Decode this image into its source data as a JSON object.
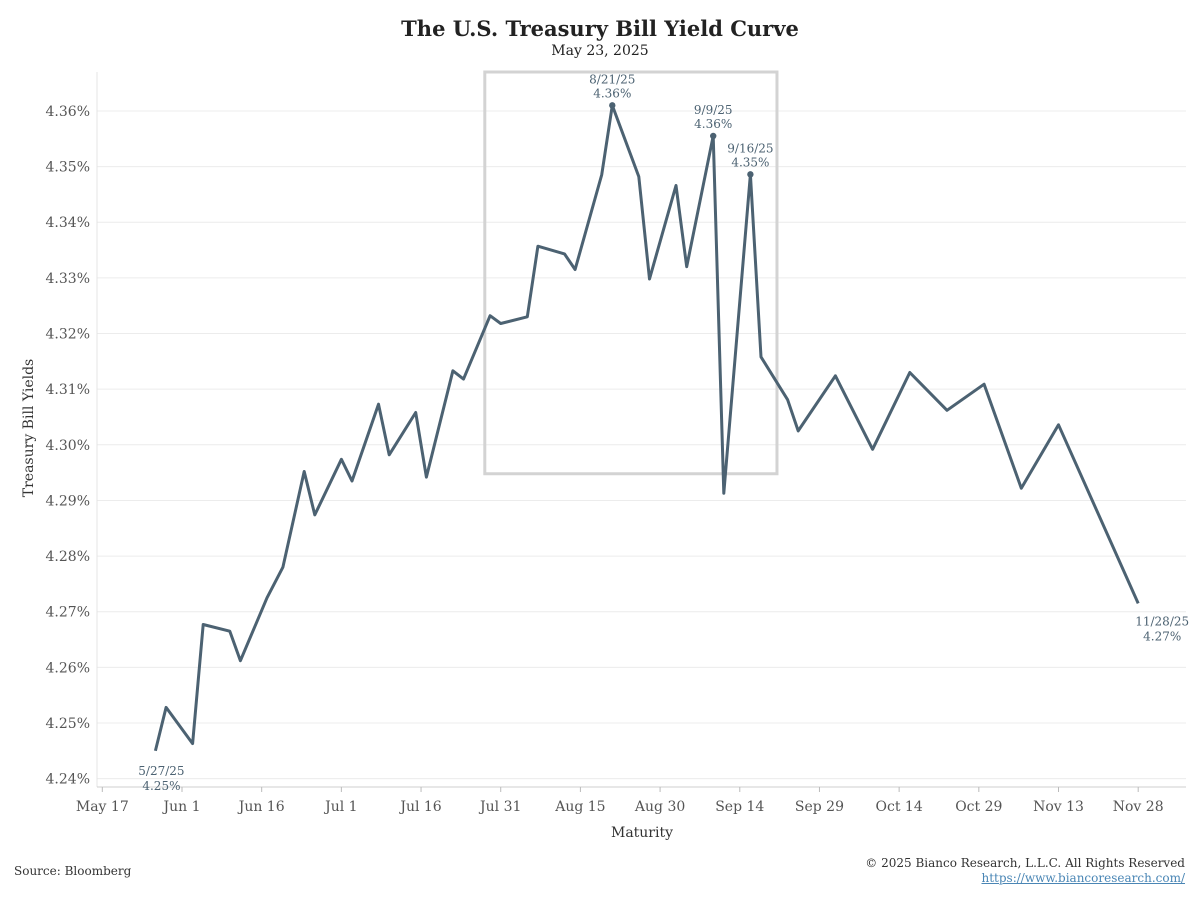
{
  "title": "The U.S. Treasury Bill Yield Curve",
  "subtitle": "May 23, 2025",
  "source": "Source: Bloomberg",
  "copyright": "© 2025 Bianco Research, L.L.C. All Rights Reserved",
  "url": "https://www.biancoresearch.com/",
  "chart_data": {
    "type": "line",
    "xlabel": "Maturity",
    "ylabel": "Treasury Bill Yields",
    "xlim": [
      "2025-05-16",
      "2025-12-07"
    ],
    "ylim": [
      4.2385,
      4.367
    ],
    "y_ticks": [
      4.24,
      4.25,
      4.26,
      4.27,
      4.28,
      4.29,
      4.3,
      4.31,
      4.32,
      4.33,
      4.34,
      4.35,
      4.36
    ],
    "y_tick_labels": [
      "4.24%",
      "4.25%",
      "4.26%",
      "4.27%",
      "4.28%",
      "4.29%",
      "4.30%",
      "4.31%",
      "4.32%",
      "4.33%",
      "4.34%",
      "4.35%",
      "4.36%"
    ],
    "x_ticks": [
      {
        "date": "2025-05-17",
        "label": "May 17"
      },
      {
        "date": "2025-06-01",
        "label": "Jun 1"
      },
      {
        "date": "2025-06-16",
        "label": "Jun 16"
      },
      {
        "date": "2025-07-01",
        "label": "Jul 1"
      },
      {
        "date": "2025-07-16",
        "label": "Jul 16"
      },
      {
        "date": "2025-07-31",
        "label": "Jul 31"
      },
      {
        "date": "2025-08-15",
        "label": "Aug 15"
      },
      {
        "date": "2025-08-30",
        "label": "Aug 30"
      },
      {
        "date": "2025-09-14",
        "label": "Sep 14"
      },
      {
        "date": "2025-09-29",
        "label": "Sep 29"
      },
      {
        "date": "2025-10-14",
        "label": "Oct 14"
      },
      {
        "date": "2025-10-29",
        "label": "Oct 29"
      },
      {
        "date": "2025-11-13",
        "label": "Nov 13"
      },
      {
        "date": "2025-11-28",
        "label": "Nov 28"
      }
    ],
    "grid": true,
    "series": [
      {
        "color": "#4c6272",
        "points": [
          [
            "2025-05-27",
            4.245
          ],
          [
            "2025-05-29",
            4.2528
          ],
          [
            "2025-06-03",
            4.2463
          ],
          [
            "2025-06-05",
            4.2677
          ],
          [
            "2025-06-10",
            4.2665
          ],
          [
            "2025-06-12",
            4.2612
          ],
          [
            "2025-06-17",
            4.2725
          ],
          [
            "2025-06-20",
            4.278
          ],
          [
            "2025-06-24",
            4.2952
          ],
          [
            "2025-06-26",
            4.2874
          ],
          [
            "2025-07-01",
            4.2974
          ],
          [
            "2025-07-03",
            4.2935
          ],
          [
            "2025-07-08",
            4.3073
          ],
          [
            "2025-07-10",
            4.2982
          ],
          [
            "2025-07-15",
            4.3058
          ],
          [
            "2025-07-17",
            4.2942
          ],
          [
            "2025-07-22",
            4.3133
          ],
          [
            "2025-07-24",
            4.3118
          ],
          [
            "2025-07-29",
            4.3232
          ],
          [
            "2025-07-31",
            4.3218
          ],
          [
            "2025-08-05",
            4.323
          ],
          [
            "2025-08-07",
            4.3357
          ],
          [
            "2025-08-12",
            4.3343
          ],
          [
            "2025-08-14",
            4.3315
          ],
          [
            "2025-08-19",
            4.3485
          ],
          [
            "2025-08-21",
            4.361
          ],
          [
            "2025-08-26",
            4.3482
          ],
          [
            "2025-08-28",
            4.3298
          ],
          [
            "2025-09-02",
            4.3466
          ],
          [
            "2025-09-04",
            4.332
          ],
          [
            "2025-09-09",
            4.3555
          ],
          [
            "2025-09-11",
            4.2913
          ],
          [
            "2025-09-16",
            4.3486
          ],
          [
            "2025-09-18",
            4.3158
          ],
          [
            "2025-09-23",
            4.3081
          ],
          [
            "2025-09-25",
            4.3025
          ],
          [
            "2025-10-02",
            4.3124
          ],
          [
            "2025-10-09",
            4.2992
          ],
          [
            "2025-10-16",
            4.313
          ],
          [
            "2025-10-23",
            4.3062
          ],
          [
            "2025-10-30",
            4.3109
          ],
          [
            "2025-11-06",
            4.2922
          ],
          [
            "2025-11-13",
            4.3036
          ],
          [
            "2025-11-28",
            4.2715
          ]
        ]
      }
    ],
    "markers": [
      {
        "date": "2025-08-21",
        "value": 4.361
      },
      {
        "date": "2025-09-09",
        "value": 4.3555
      },
      {
        "date": "2025-09-16",
        "value": 4.3486
      }
    ],
    "annotations": [
      {
        "date": "2025-05-27",
        "value": 4.245,
        "lines": [
          "5/27/25",
          "4.25%"
        ],
        "pos": "below"
      },
      {
        "date": "2025-08-21",
        "value": 4.361,
        "lines": [
          "8/21/25",
          "4.36%"
        ],
        "pos": "above"
      },
      {
        "date": "2025-09-09",
        "value": 4.3555,
        "lines": [
          "9/9/25",
          "4.36%"
        ],
        "pos": "above"
      },
      {
        "date": "2025-09-16",
        "value": 4.3486,
        "lines": [
          "9/16/25",
          "4.35%"
        ],
        "pos": "above"
      },
      {
        "date": "2025-11-28",
        "value": 4.2715,
        "lines": [
          "11/28/25",
          "4.27%"
        ],
        "pos": "right"
      }
    ],
    "highlight_box": {
      "x_range": [
        "2025-07-28",
        "2025-09-21"
      ],
      "y_range": [
        4.2948,
        4.367
      ]
    }
  }
}
